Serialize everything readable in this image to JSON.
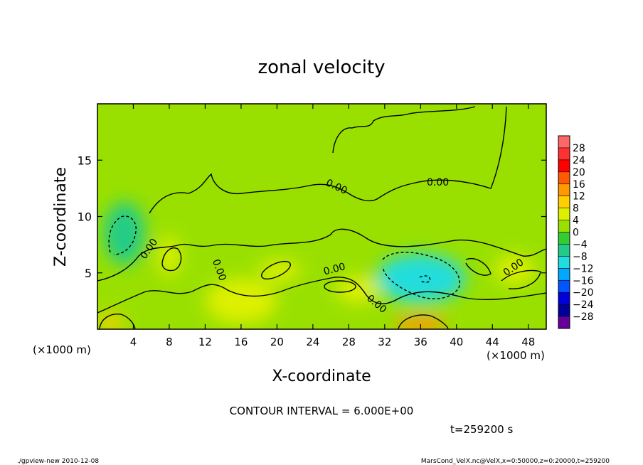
{
  "chart_data": {
    "type": "heatmap",
    "title": "zonal velocity",
    "xlabel": "X-coordinate",
    "ylabel": "Z-coordinate",
    "x_unit_label": "(×1000 m)",
    "y_unit_label": "(×1000 m)",
    "xlim": [
      0,
      50
    ],
    "ylim": [
      0,
      20
    ],
    "x_ticks": [
      "4",
      "8",
      "12",
      "16",
      "20",
      "24",
      "28",
      "32",
      "36",
      "40",
      "44",
      "48"
    ],
    "x_tick_values": [
      4,
      8,
      12,
      16,
      20,
      24,
      28,
      32,
      36,
      40,
      44,
      48
    ],
    "y_ticks": [
      "5",
      "10",
      "15"
    ],
    "y_tick_values": [
      5,
      10,
      15
    ],
    "colorbar": {
      "labels": [
        "28",
        "24",
        "20",
        "16",
        "12",
        "8",
        "4",
        "0",
        "−4",
        "−8",
        "−12",
        "−16",
        "−20",
        "−24",
        "−28"
      ],
      "levels": [
        28,
        24,
        20,
        16,
        12,
        8,
        4,
        0,
        -4,
        -8,
        -12,
        -16,
        -20,
        -24,
        -28
      ],
      "colors": [
        "#ff6666",
        "#ff3030",
        "#ff0000",
        "#ff5a00",
        "#ff9900",
        "#ffd000",
        "#ddf000",
        "#99e000",
        "#33cc33",
        "#22cc88",
        "#22dddd",
        "#00a8ff",
        "#0055ff",
        "#0000dd",
        "#000099",
        "#660099"
      ]
    },
    "contour_label": "0.00",
    "contour_interval_text": "CONTOUR INTERVAL = 6.000E+00",
    "time_text": "t=259200 s",
    "background_value": 0,
    "blobs": [
      {
        "x": 36,
        "z": 4.5,
        "rx": 5,
        "rz": 2.2,
        "value": -10
      },
      {
        "x": 3,
        "z": 8.5,
        "rx": 2.3,
        "rz": 2.8,
        "value": -5
      },
      {
        "x": 46.5,
        "z": 5.3,
        "rx": 2.2,
        "rz": 1.3,
        "value": 5
      },
      {
        "x": 29,
        "z": 3.5,
        "rx": 2.5,
        "rz": 1.2,
        "value": 7
      },
      {
        "x": 20.3,
        "z": 5.2,
        "rx": 2.4,
        "rz": 0.9,
        "value": 6
      },
      {
        "x": 8,
        "z": 6.5,
        "rx": 1.2,
        "rz": 1.8,
        "value": 6
      },
      {
        "x": 36,
        "z": 0.4,
        "rx": 2.8,
        "rz": 0.8,
        "value": 12
      },
      {
        "x": 1.5,
        "z": 0.6,
        "rx": 1.3,
        "rz": 0.8,
        "value": 8
      },
      {
        "x": 16,
        "z": 2.5,
        "rx": 4,
        "rz": 2,
        "value": 4
      }
    ]
  },
  "footer": {
    "left": "./gpview-new  2010-12-08",
    "right": "MarsCond_VelX.nc@VelX,x=0:50000,z=0:20000,t=259200"
  }
}
